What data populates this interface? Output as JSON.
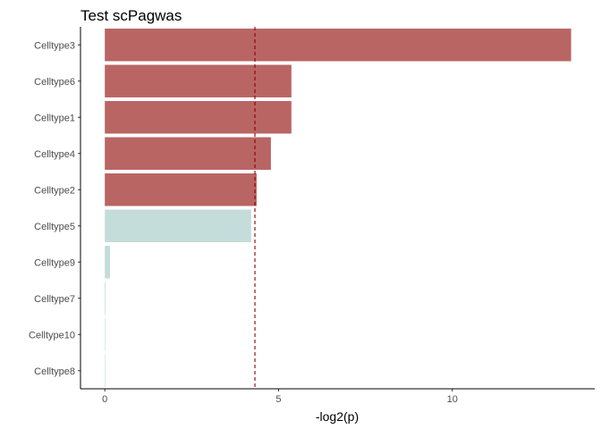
{
  "chart_data": {
    "type": "bar",
    "orientation": "horizontal",
    "title": "Test scPagwas",
    "xlabel": "-log2(p)",
    "ylabel": "",
    "xlim": [
      -0.7,
      14.1
    ],
    "x_ticks": [
      0,
      5,
      10
    ],
    "x_tick_labels": [
      "0",
      "5",
      "10"
    ],
    "grid": false,
    "legend": "none",
    "threshold": 4.32,
    "threshold_color": "#8b0000",
    "colors": {
      "above": "#b96564",
      "below": "#c4dcda"
    },
    "categories": [
      "Celltype3",
      "Celltype6",
      "Celltype1",
      "Celltype4",
      "Celltype2",
      "Celltype5",
      "Celltype9",
      "Celltype7",
      "Celltype10",
      "Celltype8"
    ],
    "values": [
      13.42,
      5.37,
      5.37,
      4.78,
      4.37,
      4.21,
      0.15,
      0.02,
      0.0,
      0.0
    ]
  }
}
